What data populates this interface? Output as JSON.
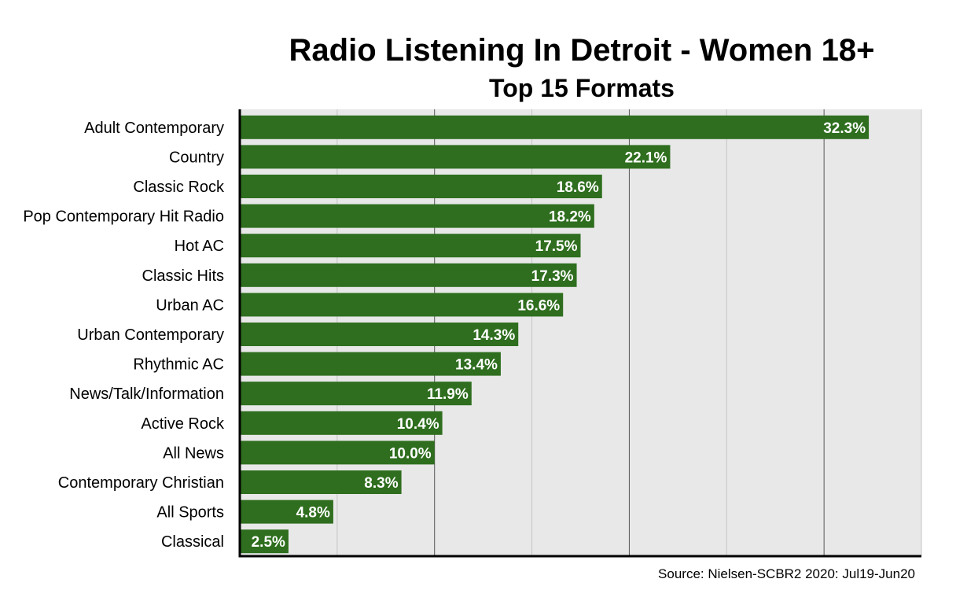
{
  "chart_data": {
    "type": "bar",
    "orientation": "horizontal",
    "title": "Radio Listening In Detroit - Women 18+",
    "subtitle": "Top 15 Formats",
    "categories": [
      "Adult Contemporary",
      "Country",
      "Classic Rock",
      "Pop Contemporary Hit Radio",
      "Hot AC",
      "Classic Hits",
      "Urban AC",
      "Urban Contemporary",
      "Rhythmic AC",
      "News/Talk/Information",
      "Active Rock",
      "All News",
      "Contemporary Christian",
      "All Sports",
      "Classical"
    ],
    "values": [
      32.3,
      22.1,
      18.6,
      18.2,
      17.5,
      17.3,
      16.6,
      14.3,
      13.4,
      11.9,
      10.4,
      10.0,
      8.3,
      4.8,
      2.5
    ],
    "data_labels": [
      "32.3%",
      "22.1%",
      "18.6%",
      "18.2%",
      "17.5%",
      "17.3%",
      "16.6%",
      "14.3%",
      "13.4%",
      "11.9%",
      "10.4%",
      "10.0%",
      "8.3%",
      "4.8%",
      "2.5%"
    ],
    "xlim": [
      0,
      35
    ],
    "gridlines": [
      5,
      10,
      15,
      20,
      25,
      30,
      35
    ],
    "grid": true,
    "legend": "none",
    "colors": {
      "bar": "#2e6e1e",
      "plot_background": "#e8e8e8",
      "gridline": "#555555",
      "gridline_minor": "#c4c4c4",
      "axis": "#000000"
    },
    "source": "Source: Nielsen-SCBR2 2020: Jul19-Jun20"
  }
}
